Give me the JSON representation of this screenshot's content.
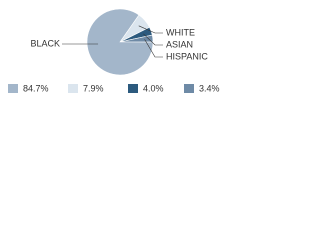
{
  "chart_data": {
    "type": "pie",
    "categories": [
      "BLACK",
      "WHITE",
      "ASIAN",
      "HISPANIC"
    ],
    "values": [
      84.7,
      7.9,
      4.0,
      3.4
    ],
    "value_labels": [
      "84.7%",
      "7.9%",
      "4.0%",
      "3.4%"
    ],
    "colors": [
      "#a3b6ca",
      "#dbe5ee",
      "#2c5a7e",
      "#6e8aa6"
    ]
  }
}
